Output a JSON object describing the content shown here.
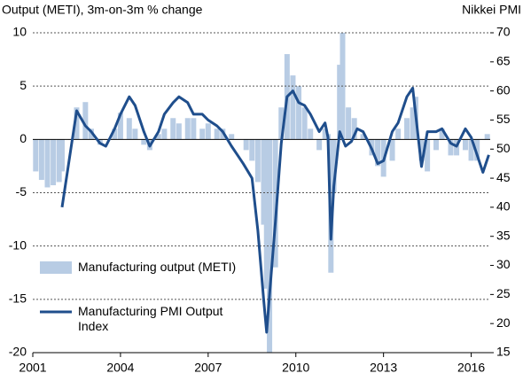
{
  "chart_data": {
    "type": "bar+line",
    "title": "Output (METI), 3m-on-3m % change",
    "y2_label": "Nikkei PMI",
    "xlim": [
      2001,
      2016.65
    ],
    "xticks": [
      2001,
      2004,
      2007,
      2010,
      2013,
      2016
    ],
    "ylim": [
      -20,
      10
    ],
    "yticks": [
      10,
      5,
      0,
      -5,
      -10,
      -15,
      -20
    ],
    "y2lim": [
      15,
      70
    ],
    "y2ticks": [
      70,
      65,
      60,
      55,
      50,
      45,
      40,
      35,
      30,
      25,
      20,
      15
    ],
    "grid": true,
    "legend": "lower left",
    "series": [
      {
        "name": "Manufacturing output (METI)",
        "type": "bar",
        "color": "#b8cce4",
        "x": [
          2001.1,
          2001.3,
          2001.5,
          2001.7,
          2001.9,
          2002.0,
          2002.3,
          2002.5,
          2002.8,
          2003.0,
          2003.3,
          2003.5,
          2003.8,
          2004.0,
          2004.3,
          2004.5,
          2004.8,
          2005.0,
          2005.3,
          2005.5,
          2005.8,
          2006.0,
          2006.3,
          2006.5,
          2006.8,
          2007.0,
          2007.3,
          2007.5,
          2007.8,
          2008.0,
          2008.3,
          2008.5,
          2008.7,
          2008.9,
          2009.0,
          2009.1,
          2009.3,
          2009.5,
          2009.7,
          2009.9,
          2010.1,
          2010.3,
          2010.5,
          2010.8,
          2011.0,
          2011.1,
          2011.2,
          2011.3,
          2011.5,
          2011.6,
          2011.8,
          2012.0,
          2012.3,
          2012.6,
          2012.8,
          2013.0,
          2013.3,
          2013.5,
          2013.8,
          2014.0,
          2014.1,
          2014.3,
          2014.5,
          2014.8,
          2015.0,
          2015.3,
          2015.5,
          2015.8,
          2016.0,
          2016.2,
          2016.4,
          2016.55
        ],
        "values": [
          -3,
          -3.8,
          -4.5,
          -4.3,
          -4,
          -3,
          0,
          3,
          3.5,
          1,
          -0.5,
          0,
          1,
          2.5,
          2,
          1,
          -0.5,
          -1,
          0.5,
          1,
          2,
          1.5,
          2,
          2,
          1,
          1.5,
          1,
          1,
          0.5,
          0,
          -1,
          -2,
          -4,
          -8,
          -14,
          -20,
          -12,
          3,
          8,
          6,
          5,
          3,
          1,
          -1,
          1,
          0.5,
          -12.5,
          -5,
          7,
          10,
          3,
          2,
          0.5,
          -1.5,
          -2.5,
          -3.5,
          -2,
          1,
          2,
          3,
          4,
          -2,
          -3,
          -1,
          1,
          -1.5,
          -1.5,
          -1,
          -2,
          -2,
          0,
          0.5
        ]
      },
      {
        "name": "Manufacturing PMI Output Index",
        "type": "line",
        "color": "#1f4e8c",
        "axis": "y2",
        "x": [
          2002.0,
          2002.3,
          2002.5,
          2002.8,
          2003.0,
          2003.3,
          2003.5,
          2003.8,
          2004.0,
          2004.3,
          2004.5,
          2004.8,
          2005.0,
          2005.3,
          2005.5,
          2005.8,
          2006.0,
          2006.3,
          2006.5,
          2006.8,
          2007.0,
          2007.3,
          2007.5,
          2007.8,
          2008.0,
          2008.2,
          2008.5,
          2008.7,
          2008.9,
          2009.0,
          2009.1,
          2009.3,
          2009.5,
          2009.7,
          2009.9,
          2010.1,
          2010.3,
          2010.5,
          2010.8,
          2011.0,
          2011.1,
          2011.2,
          2011.3,
          2011.5,
          2011.7,
          2011.9,
          2012.1,
          2012.3,
          2012.6,
          2012.8,
          2013.0,
          2013.3,
          2013.5,
          2013.8,
          2014.0,
          2014.1,
          2014.3,
          2014.5,
          2014.8,
          2015.0,
          2015.3,
          2015.5,
          2015.8,
          2016.0,
          2016.2,
          2016.4,
          2016.6
        ],
        "values": [
          40,
          50,
          56.6,
          54,
          53,
          51,
          50.5,
          53.5,
          56,
          59,
          57.5,
          53,
          50.5,
          53,
          56,
          58,
          59,
          58,
          56,
          56,
          55,
          54,
          53,
          50.5,
          49,
          47.5,
          45,
          36,
          24,
          18.5,
          25,
          37.5,
          51,
          59,
          60,
          58,
          57.5,
          56,
          53,
          54.5,
          52,
          34.5,
          43.6,
          53,
          50.5,
          51.3,
          53.5,
          53,
          50,
          47.5,
          48,
          53,
          54.5,
          59,
          60.5,
          56,
          47,
          53,
          53,
          53.5,
          51,
          50.5,
          53.5,
          52,
          49,
          46,
          49
        ]
      }
    ]
  }
}
